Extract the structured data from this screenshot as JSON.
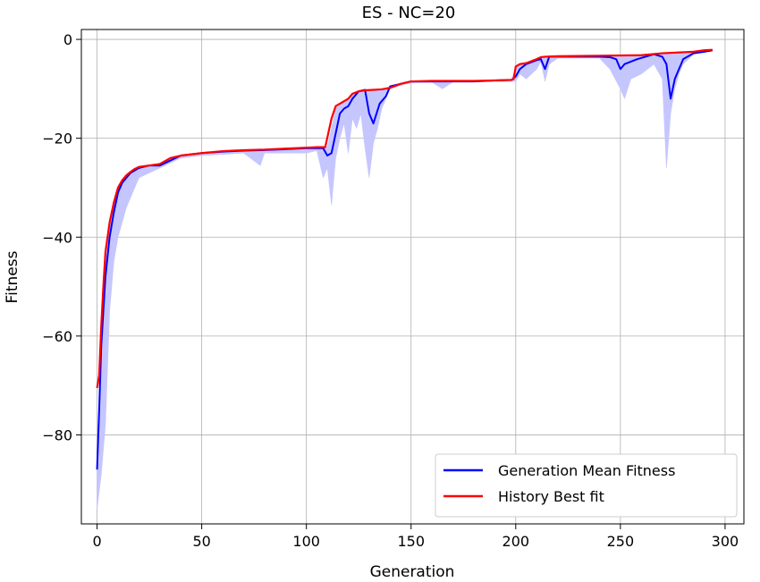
{
  "chart_data": {
    "type": "line",
    "title": "ES - NC=20",
    "xlabel": "Generation",
    "ylabel": "Fitness",
    "xlim": [
      -7.5,
      309
    ],
    "ylim": [
      -98,
      2
    ],
    "xticks": [
      0,
      50,
      100,
      150,
      200,
      250,
      300
    ],
    "yticks": [
      0,
      -20,
      -40,
      -60,
      -80
    ],
    "ytick_labels": [
      "0",
      "−20",
      "−40",
      "−60",
      "−80"
    ],
    "grid": true,
    "legend_position": "lower-right",
    "series": [
      {
        "name": "Generation Mean Fitness",
        "color": "#0000ff",
        "x": [
          0,
          1,
          2,
          3,
          4,
          5,
          6,
          8,
          10,
          12,
          14,
          16,
          18,
          20,
          25,
          30,
          35,
          40,
          50,
          60,
          70,
          80,
          90,
          100,
          105,
          108,
          110,
          112,
          114,
          116,
          118,
          120,
          122,
          125,
          128,
          130,
          132,
          135,
          138,
          140,
          145,
          150,
          160,
          170,
          180,
          190,
          198,
          200,
          202,
          205,
          210,
          212,
          214,
          216,
          220,
          230,
          240,
          245,
          248,
          250,
          252,
          255,
          258,
          262,
          266,
          270,
          272,
          274,
          276,
          278,
          280,
          285,
          290,
          294
        ],
        "y": [
          -87,
          -75,
          -62,
          -55,
          -48,
          -44,
          -40,
          -35,
          -31,
          -29,
          -28,
          -27,
          -26.5,
          -26,
          -25.5,
          -25.5,
          -24.5,
          -23.5,
          -23,
          -22.7,
          -22.5,
          -22.4,
          -22.2,
          -22,
          -22,
          -22,
          -23.5,
          -23,
          -19,
          -15,
          -14,
          -13.5,
          -12,
          -10.5,
          -10.2,
          -15,
          -17,
          -13,
          -11.5,
          -9.5,
          -9,
          -8.5,
          -8.5,
          -8.5,
          -8.5,
          -8.3,
          -8.2,
          -7.5,
          -6,
          -5,
          -4.2,
          -4,
          -6,
          -3.5,
          -3.5,
          -3.5,
          -3.5,
          -3.6,
          -4,
          -6,
          -5,
          -4.5,
          -4,
          -3.5,
          -3,
          -3.5,
          -5,
          -12,
          -8,
          -6,
          -4,
          -2.8,
          -2.5,
          -2.2
        ]
      },
      {
        "name": "History Best fit",
        "color": "#ff0000",
        "x": [
          0,
          1,
          2,
          3,
          4,
          5,
          6,
          8,
          10,
          12,
          14,
          16,
          18,
          20,
          25,
          30,
          35,
          40,
          50,
          60,
          70,
          80,
          90,
          100,
          105,
          109,
          112,
          114,
          116,
          118,
          120,
          122,
          125,
          128,
          132,
          136,
          140,
          145,
          150,
          160,
          170,
          180,
          190,
          198,
          199,
          200,
          202,
          205,
          210,
          212,
          214,
          220,
          240,
          260,
          270,
          280,
          285,
          290,
          294
        ],
        "y": [
          -70.5,
          -68,
          -58,
          -50,
          -43,
          -40,
          -37,
          -33,
          -30,
          -28.5,
          -27.5,
          -26.8,
          -26.2,
          -25.8,
          -25.5,
          -25.2,
          -24,
          -23.5,
          -23,
          -22.6,
          -22.4,
          -22.3,
          -22.1,
          -21.9,
          -21.8,
          -21.8,
          -16,
          -13.5,
          -13,
          -12.5,
          -12,
          -11,
          -10.5,
          -10.3,
          -10.2,
          -10.1,
          -9.8,
          -9,
          -8.5,
          -8.4,
          -8.4,
          -8.4,
          -8.3,
          -8.2,
          -8.0,
          -5.5,
          -5,
          -4.8,
          -4,
          -3.6,
          -3.5,
          -3.4,
          -3.3,
          -3.2,
          -2.8,
          -2.6,
          -2.5,
          -2.2,
          -2.1
        ]
      },
      {
        "name": "spread-upper",
        "color": "#c6c6ff",
        "x": [
          0,
          2,
          4,
          6,
          8,
          10,
          14,
          20,
          30,
          40,
          50,
          70,
          90,
          100,
          108,
          110,
          114,
          118,
          122,
          126,
          130,
          134,
          140,
          150,
          170,
          198,
          200,
          205,
          212,
          216,
          230,
          250,
          270,
          280,
          294
        ],
        "y": [
          -85,
          -60,
          -45,
          -38,
          -33,
          -30,
          -27.5,
          -26,
          -25.2,
          -23.5,
          -23,
          -22.4,
          -22.1,
          -21.9,
          -21.8,
          -21.8,
          -14,
          -12.5,
          -11,
          -10.4,
          -10.2,
          -10.1,
          -9.6,
          -8.5,
          -8.4,
          -8.2,
          -5.5,
          -4.8,
          -3.6,
          -3.5,
          -3.4,
          -3.3,
          -2.8,
          -2.6,
          -2.1
        ]
      },
      {
        "name": "spread-lower",
        "color": "#c6c6ff",
        "x": [
          0,
          2,
          4,
          6,
          8,
          10,
          14,
          16,
          20,
          30,
          40,
          50,
          70,
          78,
          80,
          90,
          100,
          105,
          108,
          110,
          112,
          114,
          116,
          118,
          120,
          122,
          124,
          126,
          128,
          130,
          132,
          134,
          136,
          140,
          145,
          150,
          160,
          165,
          170,
          198,
          200,
          202,
          205,
          210,
          212,
          214,
          216,
          220,
          240,
          245,
          250,
          252,
          255,
          260,
          266,
          270,
          272,
          274,
          276,
          278,
          280,
          285,
          294
        ],
        "y": [
          -95,
          -88,
          -78,
          -55,
          -45,
          -40,
          -34,
          -32,
          -28,
          -26,
          -24,
          -23.5,
          -23,
          -25.5,
          -23,
          -23,
          -23,
          -22.5,
          -28,
          -26,
          -33.5,
          -24,
          -20,
          -17,
          -23,
          -16,
          -18,
          -15,
          -22,
          -28,
          -21,
          -18,
          -14,
          -10,
          -9.3,
          -8.8,
          -8.7,
          -10,
          -8.6,
          -8.5,
          -8.5,
          -7,
          -8,
          -6,
          -4.5,
          -8.5,
          -5,
          -3.8,
          -3.8,
          -6,
          -10,
          -12,
          -8,
          -7,
          -5,
          -8,
          -26,
          -15,
          -10,
          -7,
          -5,
          -3,
          -2.3
        ]
      }
    ],
    "legend": [
      {
        "label": "Generation Mean Fitness",
        "color": "#0000ff"
      },
      {
        "label": "History Best fit",
        "color": "#ff0000"
      }
    ]
  }
}
